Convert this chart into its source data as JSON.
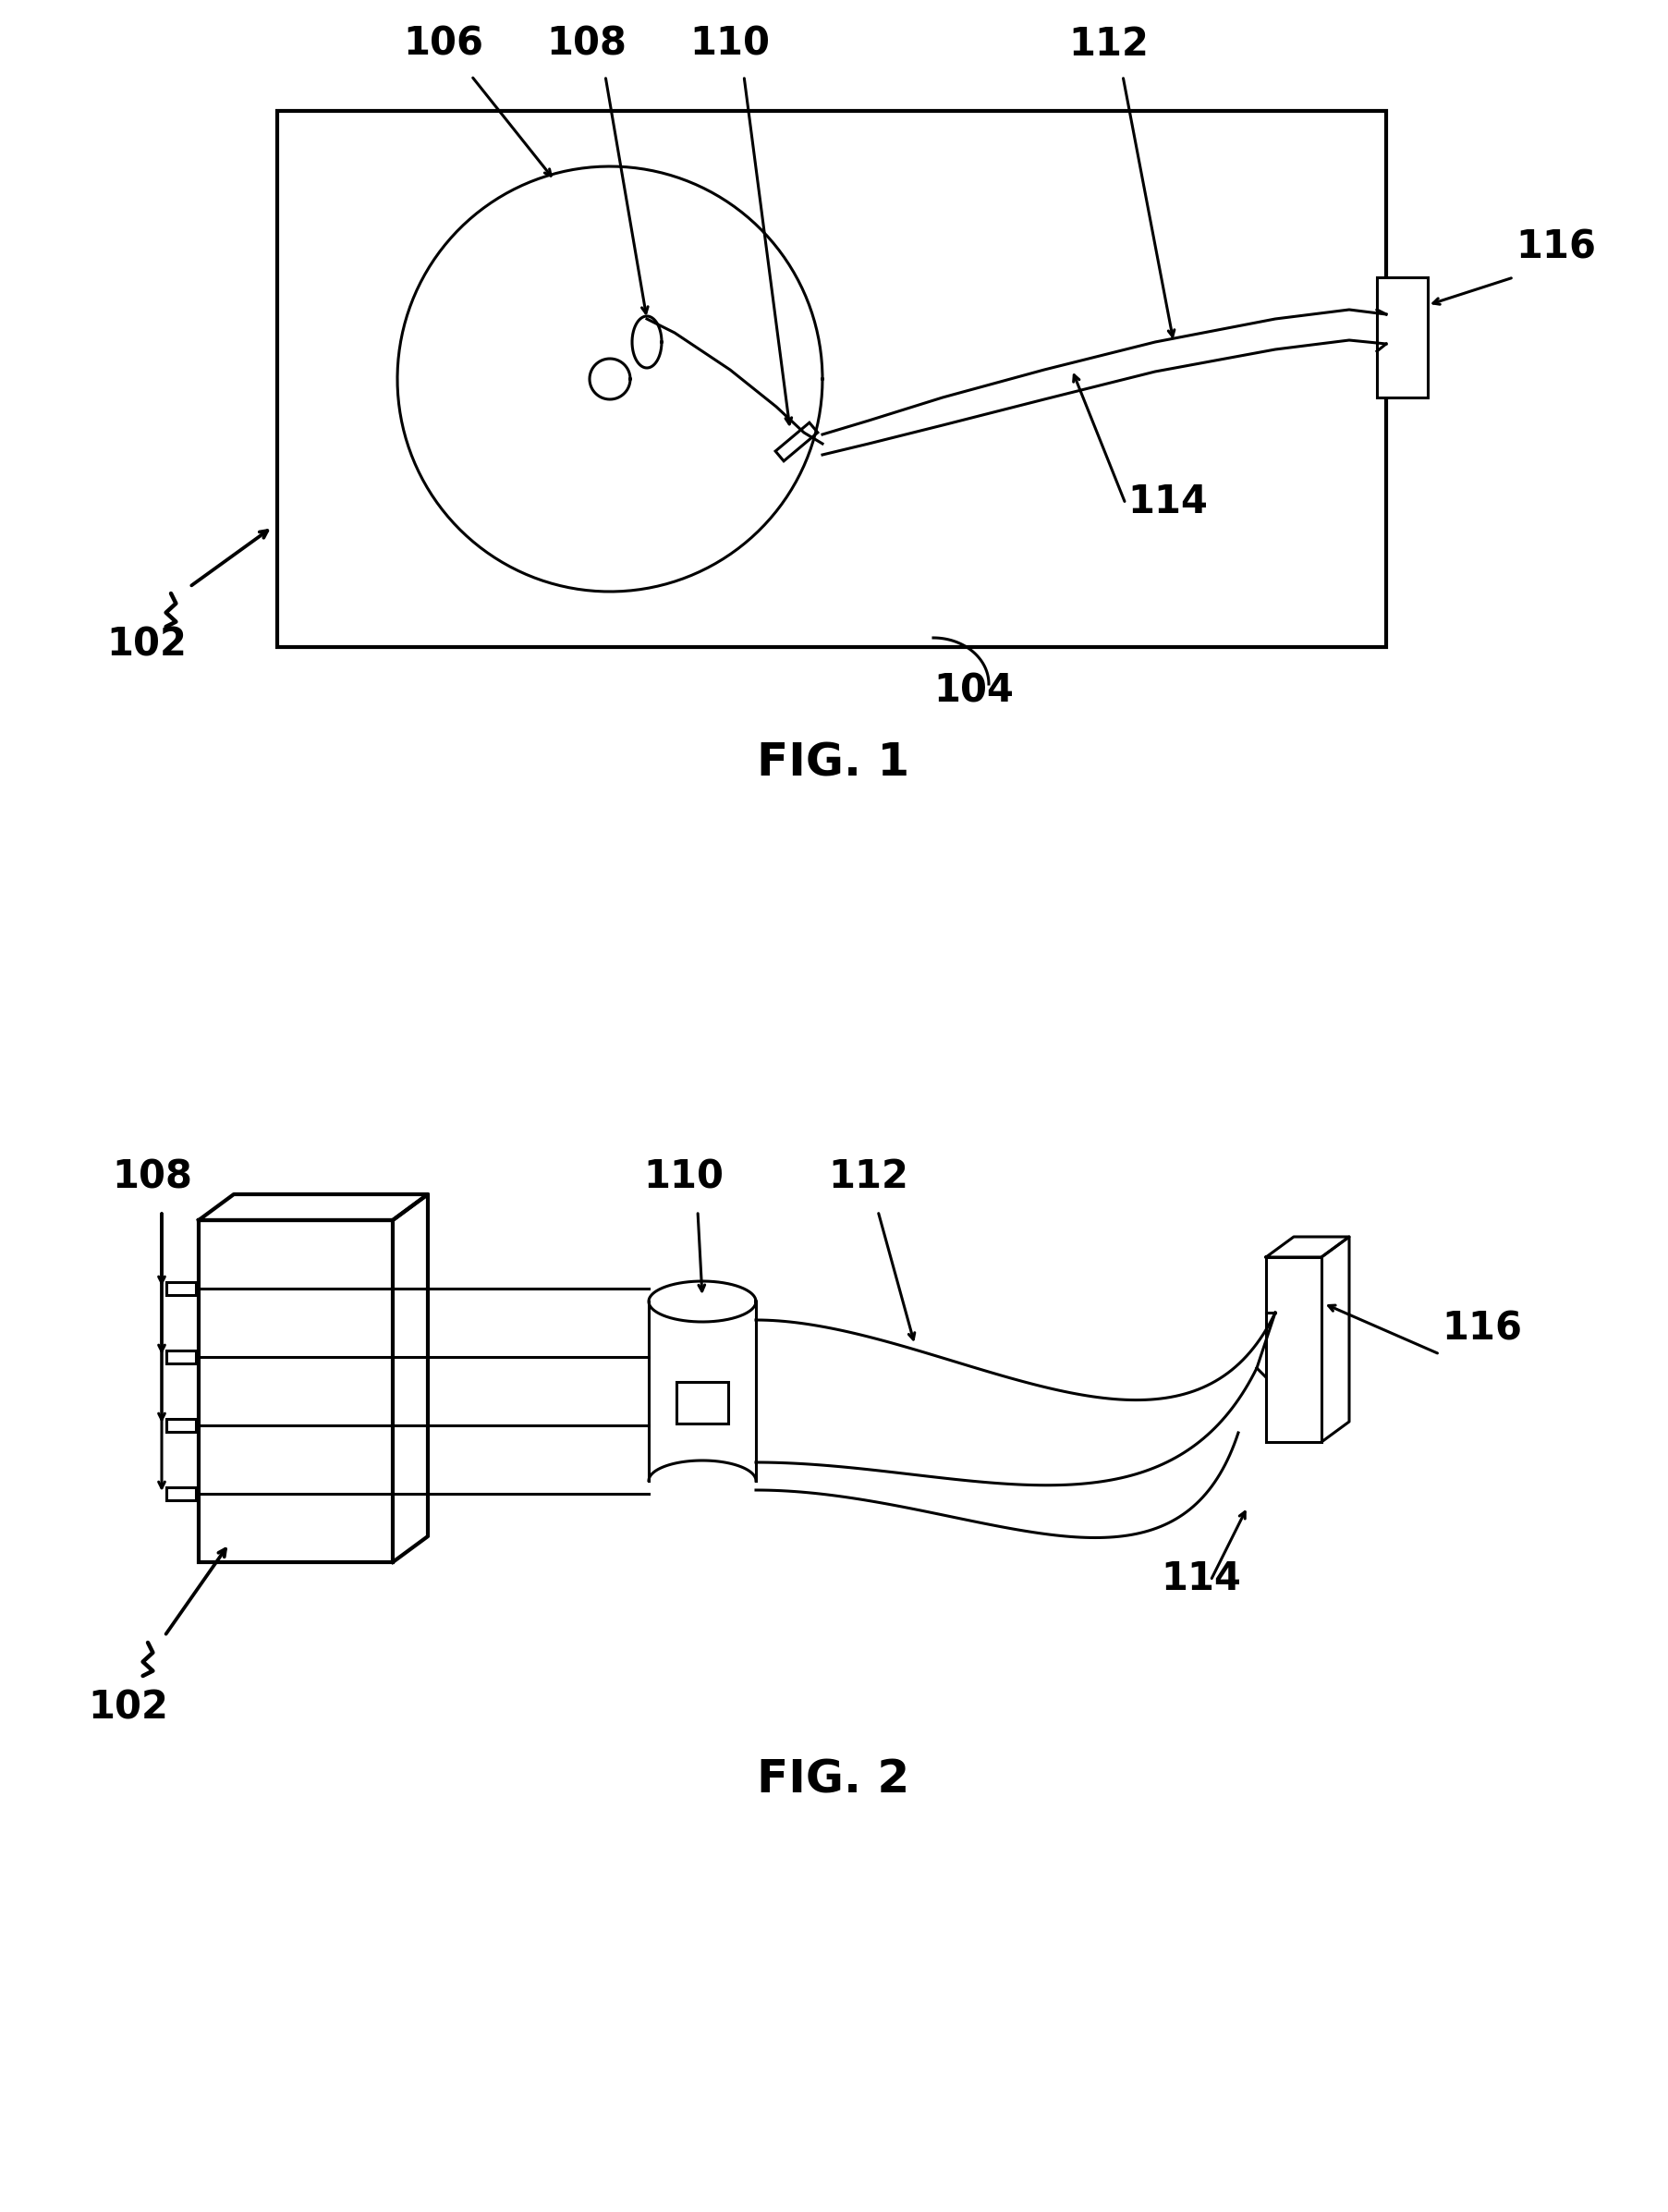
{
  "fig_width": 18.05,
  "fig_height": 23.93,
  "bg_color": "#ffffff",
  "line_color": "#000000",
  "fig1_caption": "FIG. 1",
  "fig2_caption": "FIG. 2",
  "labels": {
    "102_1": "102",
    "104_1": "104",
    "106_1": "106",
    "108_1": "108",
    "110_1": "110",
    "112_1": "112",
    "114_1": "114",
    "116_1": "116",
    "102_2": "102",
    "108_2": "108",
    "110_2": "110",
    "112_2": "112",
    "114_2": "114",
    "116_2": "116"
  }
}
